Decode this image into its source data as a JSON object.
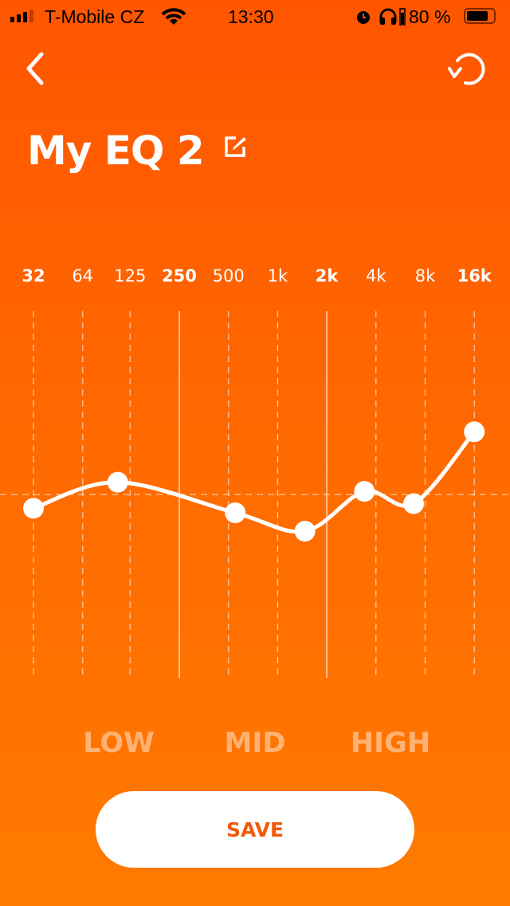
{
  "status_bar": {
    "carrier": "T-Mobile CZ",
    "time": "13:30",
    "battery": "80 %",
    "icons": [
      "signal-icon",
      "wifi-icon",
      "alarm-icon",
      "headphones-icon",
      "battery-icon"
    ]
  },
  "header": {
    "back_icon": "chevron-left-icon",
    "reset_icon": "undo-icon",
    "title": "My EQ 2",
    "edit_icon": "edit-icon"
  },
  "colors": {
    "background_top": "#ff5500",
    "background_bottom": "#ff7a00",
    "accent_text": "#f05a0a"
  },
  "frequencies": [
    {
      "label": "32",
      "bold": true
    },
    {
      "label": "64"
    },
    {
      "label": "125"
    },
    {
      "label": "250",
      "bold": true
    },
    {
      "label": "500"
    },
    {
      "label": "1k"
    },
    {
      "label": "2k",
      "bold": true
    },
    {
      "label": "4k"
    },
    {
      "label": "8k"
    },
    {
      "label": "16k",
      "bold": true
    }
  ],
  "chart_data": {
    "type": "line",
    "x_scale": "log",
    "x_ticks": [
      32,
      64,
      125,
      250,
      500,
      1000,
      2000,
      4000,
      8000,
      16000
    ],
    "points": [
      {
        "freq_hz": 32,
        "gain_db": -0.9
      },
      {
        "freq_hz": 105,
        "gain_db": 0.8
      },
      {
        "freq_hz": 550,
        "gain_db": -1.2
      },
      {
        "freq_hz": 1470,
        "gain_db": -2.4
      },
      {
        "freq_hz": 3400,
        "gain_db": 0.2
      },
      {
        "freq_hz": 6800,
        "gain_db": -0.6
      },
      {
        "freq_hz": 16000,
        "gain_db": 4.1
      }
    ],
    "ylim_db": [
      -12,
      12
    ]
  },
  "bands": [
    "LOW",
    "MID",
    "HIGH"
  ],
  "save_label": "SAVE"
}
